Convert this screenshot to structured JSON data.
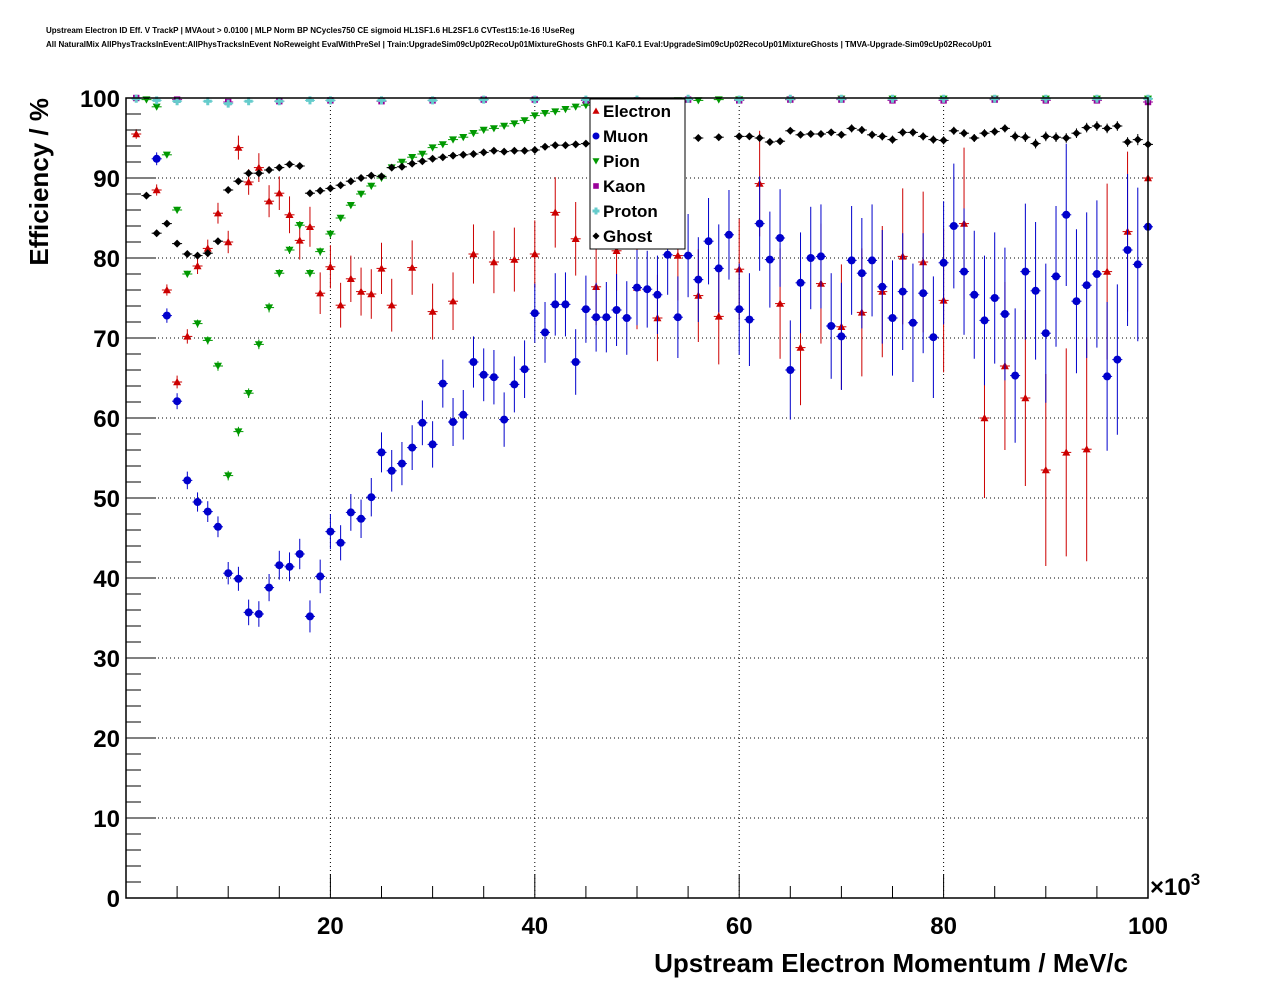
{
  "chart_data": {
    "type": "scatter",
    "title_line1": "Upstream Electron ID Eff. V TrackP | MVAout > 0.0100 | MLP Norm BP NCycles750 CE sigmoid HL1SF1.6 HL2SF1.6 CVTest15:1e-16 !UseReg",
    "title_line2": "All NaturalMix AllPhysTracksInEvent:AllPhysTracksInEvent NoReweight EvalWithPreSel | Train:UpgradeSim09cUp02RecoUp01MixtureGhosts GhF0.1 KaF0.1 Eval:UpgradeSim09cUp02RecoUp01MixtureGhosts | TMVA-Upgrade-Sim09cUp02RecoUp01",
    "xlabel": "Upstream Electron Momentum / MeV/c",
    "ylabel": "Efficiency / %",
    "x_multiplier": "×10",
    "x_multiplier_exp": "3",
    "xlim": [
      0,
      100000
    ],
    "ylim": [
      0,
      100
    ],
    "x_ticks": [
      20000,
      40000,
      60000,
      80000,
      100000
    ],
    "x_tick_labels": [
      "20",
      "40",
      "60",
      "80",
      "100"
    ],
    "y_ticks": [
      0,
      10,
      20,
      30,
      40,
      50,
      60,
      70,
      80,
      90,
      100
    ],
    "y_tick_labels": [
      "0",
      "10",
      "20",
      "30",
      "40",
      "50",
      "60",
      "70",
      "80",
      "90",
      "100"
    ],
    "grid": true,
    "legend_position": "top-center",
    "series": [
      {
        "name": "Electron",
        "color": "#cc0000",
        "marker": "triangle-up",
        "x": [
          1000,
          3000,
          4000,
          5000,
          6000,
          7000,
          8000,
          9000,
          10000,
          11000,
          12000,
          13000,
          14000,
          15000,
          16000,
          17000,
          18000,
          19000,
          20000,
          21000,
          22000,
          23000,
          24000,
          25000,
          26000,
          28000,
          30000,
          32000,
          34000,
          36000,
          38000,
          40000,
          42000,
          44000,
          46000,
          48000,
          50000,
          52000,
          54000,
          56000,
          58000,
          60000,
          62000,
          64000,
          66000,
          68000,
          70000,
          72000,
          74000,
          76000,
          78000,
          80000,
          82000,
          84000,
          86000,
          88000,
          90000,
          92000,
          94000,
          96000,
          98000,
          100000
        ],
        "y": [
          95.5,
          88.5,
          76,
          64.5,
          70.2,
          79,
          81.2,
          85.6,
          82,
          93.8,
          89.5,
          91.3,
          87.1,
          88.1,
          85.4,
          82.2,
          83.9,
          75.6,
          78.9,
          74.1,
          77.4,
          75.8,
          75.5,
          78.7,
          74.1,
          78.8,
          73.3,
          74.6,
          80.5,
          79.5,
          79.8,
          80.5,
          85.7,
          82.4,
          76.4,
          80.9,
          76.3,
          72.5,
          80.3,
          75.3,
          72.7,
          78.6,
          89.3,
          74.3,
          68.8,
          76.8,
          71.4,
          73.2,
          75.8,
          80.2,
          79.5,
          74.7,
          84.3,
          60,
          66.5,
          62.5,
          53.5,
          55.7,
          56.1,
          78.3,
          83.3,
          90
        ],
        "err": [
          0.6,
          0.7,
          0.7,
          0.8,
          0.9,
          1,
          1.1,
          1.3,
          1.4,
          1.5,
          1.6,
          1.8,
          2,
          2.1,
          2.3,
          2.4,
          2.5,
          2.6,
          2.7,
          2.8,
          2.9,
          3,
          3.1,
          3.2,
          3.3,
          3.4,
          3.5,
          3.6,
          3.7,
          3.9,
          4,
          4.2,
          4.4,
          4.6,
          4.8,
          5,
          5.2,
          5.4,
          5.6,
          5.8,
          6,
          6.3,
          6.6,
          6.9,
          7.2,
          7.5,
          7.8,
          8,
          8.2,
          8.5,
          8.8,
          9,
          9.5,
          10,
          10.5,
          11,
          12,
          13,
          14,
          11,
          10,
          9
        ]
      },
      {
        "name": "Muon",
        "color": "#0000cc",
        "marker": "circle",
        "x": [
          3000,
          4000,
          5000,
          6000,
          7000,
          8000,
          9000,
          10000,
          11000,
          12000,
          13000,
          14000,
          15000,
          16000,
          17000,
          18000,
          19000,
          20000,
          21000,
          22000,
          23000,
          24000,
          25000,
          26000,
          27000,
          28000,
          29000,
          30000,
          31000,
          32000,
          33000,
          34000,
          35000,
          36000,
          37000,
          38000,
          39000,
          40000,
          41000,
          42000,
          43000,
          44000,
          45000,
          46000,
          47000,
          48000,
          49000,
          50000,
          51000,
          52000,
          53000,
          54000,
          55000,
          56000,
          57000,
          58000,
          59000,
          60000,
          61000,
          62000,
          63000,
          64000,
          65000,
          66000,
          67000,
          68000,
          69000,
          70000,
          71000,
          72000,
          73000,
          74000,
          75000,
          76000,
          77000,
          78000,
          79000,
          80000,
          81000,
          82000,
          83000,
          84000,
          85000,
          86000,
          87000,
          88000,
          89000,
          90000,
          91000,
          92000,
          93000,
          94000,
          95000,
          96000,
          97000,
          98000,
          99000,
          100000
        ],
        "y": [
          92.4,
          72.8,
          62.1,
          52.2,
          49.5,
          48.3,
          46.4,
          40.6,
          39.9,
          35.7,
          35.5,
          38.8,
          41.6,
          41.4,
          43,
          35.2,
          40.2,
          45.8,
          44.4,
          48.2,
          47.4,
          50.1,
          55.7,
          53.4,
          54.3,
          56.3,
          59.4,
          56.7,
          64.3,
          59.5,
          60.4,
          67,
          65.4,
          65.1,
          59.8,
          64.2,
          66.1,
          73.1,
          70.7,
          74.2,
          74.2,
          67,
          73.6,
          72.6,
          72.6,
          73.5,
          72.5,
          76.3,
          76.1,
          75.4,
          80.4,
          72.6,
          80.3,
          77.3,
          82.1,
          78.7,
          82.9,
          73.6,
          72.3,
          84.3,
          79.8,
          82.5,
          66,
          76.9,
          80,
          80.2,
          71.5,
          70.2,
          79.7,
          78.1,
          79.7,
          76.4,
          72.5,
          75.8,
          71.9,
          75.6,
          70.1,
          79.4,
          84,
          78.3,
          75.4,
          72.2,
          75,
          73,
          65.3,
          78.3,
          75.9,
          70.6,
          77.7,
          85.4,
          74.6,
          76.6,
          78,
          65.2,
          67.3,
          81,
          79.2,
          83.9
        ],
        "err": [
          0.8,
          0.9,
          1,
          1.1,
          1.2,
          1.3,
          1.3,
          1.4,
          1.5,
          1.6,
          1.6,
          1.7,
          1.8,
          1.8,
          1.9,
          2,
          2.1,
          2.2,
          2.2,
          2.3,
          2.4,
          2.4,
          2.5,
          2.6,
          2.7,
          2.8,
          2.8,
          2.9,
          3,
          3,
          3.1,
          3.2,
          3.3,
          3.4,
          3.4,
          3.5,
          3.6,
          3.7,
          3.8,
          3.9,
          4,
          4.1,
          4.2,
          4.3,
          4.4,
          4.5,
          4.6,
          4.7,
          4.8,
          4.9,
          5,
          5.1,
          5.2,
          5.3,
          5.4,
          5.5,
          5.6,
          5.7,
          5.8,
          5.9,
          6,
          6.1,
          6.2,
          6.3,
          6.4,
          6.5,
          6.6,
          6.7,
          6.8,
          6.9,
          7,
          7.1,
          7.2,
          7.3,
          7.4,
          7.5,
          7.6,
          7.7,
          7.8,
          7.9,
          8,
          8.1,
          8.2,
          8.3,
          8.4,
          8.5,
          8.6,
          8.7,
          8.8,
          8.9,
          9,
          9.1,
          9.2,
          9.3,
          9.4,
          9.5,
          9.6,
          9.7
        ]
      },
      {
        "name": "Pion",
        "color": "#009900",
        "marker": "triangle-down",
        "x": [
          2000,
          3000,
          4000,
          5000,
          6000,
          7000,
          8000,
          9000,
          10000,
          11000,
          12000,
          13000,
          14000,
          15000,
          16000,
          17000,
          18000,
          19000,
          20000,
          21000,
          22000,
          23000,
          24000,
          25000,
          26000,
          27000,
          28000,
          29000,
          30000,
          31000,
          32000,
          33000,
          34000,
          35000,
          36000,
          37000,
          38000,
          39000,
          40000,
          41000,
          42000,
          43000,
          44000,
          45000,
          46000,
          47000,
          48000,
          49000,
          50000,
          52000,
          54000,
          56000,
          58000,
          60000,
          65000,
          70000,
          75000,
          80000,
          85000,
          90000,
          95000,
          100000
        ],
        "y": [
          99.8,
          98.9,
          92.9,
          86,
          78,
          71.8,
          69.7,
          66.5,
          52.8,
          58.3,
          63.1,
          69.2,
          73.8,
          78.1,
          81,
          84.1,
          78.1,
          80.8,
          83,
          85,
          86.6,
          88,
          89,
          90,
          91.3,
          92,
          92.6,
          93,
          93.8,
          94.2,
          94.8,
          95.1,
          95.6,
          96,
          96.2,
          96.5,
          96.8,
          97.2,
          97.8,
          98.1,
          98.3,
          98.6,
          98.9,
          99.1,
          99.2,
          99.3,
          99.4,
          99.5,
          99.6,
          99.6,
          99.7,
          99.7,
          99.8,
          99.8,
          99.8,
          99.9,
          99.9,
          99.9,
          99.9,
          99.9,
          99.9,
          99.9
        ],
        "err": [
          0.1,
          0.2,
          0.3,
          0.4,
          0.4,
          0.5,
          0.5,
          0.6,
          0.6,
          0.6,
          0.6,
          0.6,
          0.6,
          0.5,
          0.5,
          0.5,
          0.5,
          0.5,
          0.5,
          0.4,
          0.4,
          0.4,
          0.4,
          0.4,
          0.3,
          0.3,
          0.3,
          0.3,
          0.3,
          0.3,
          0.3,
          0.3,
          0.2,
          0.2,
          0.2,
          0.2,
          0.2,
          0.2,
          0.2,
          0.2,
          0.2,
          0.2,
          0.2,
          0.2,
          0.2,
          0.2,
          0.1,
          0.1,
          0.1,
          0.1,
          0.1,
          0.1,
          0.1,
          0.1,
          0.1,
          0.1,
          0.1,
          0.1,
          0.1,
          0.1,
          0.1,
          0.1
        ]
      },
      {
        "name": "Kaon",
        "color": "#990099",
        "marker": "square",
        "x": [
          1000,
          5000,
          10000,
          15000,
          20000,
          25000,
          30000,
          35000,
          40000,
          45000,
          50000,
          55000,
          60000,
          65000,
          70000,
          75000,
          80000,
          85000,
          90000,
          95000,
          100000
        ],
        "y": [
          100,
          99.8,
          99.5,
          99.6,
          99.7,
          99.6,
          99.7,
          99.8,
          99.8,
          99.7,
          99.7,
          99.8,
          99.7,
          99.8,
          99.8,
          99.7,
          99.7,
          99.8,
          99.7,
          99.7,
          99.5
        ],
        "err": [
          0.1,
          0.1,
          0.1,
          0.1,
          0.1,
          0.1,
          0.1,
          0.1,
          0.1,
          0.1,
          0.1,
          0.1,
          0.1,
          0.1,
          0.1,
          0.1,
          0.1,
          0.1,
          0.1,
          0.1,
          0.1
        ]
      },
      {
        "name": "Proton",
        "color": "#66cccc",
        "marker": "cross",
        "x": [
          1000,
          3000,
          5000,
          8000,
          10000,
          12000,
          15000,
          18000,
          20000,
          25000,
          30000,
          35000,
          40000,
          45000,
          50000,
          55000,
          60000,
          65000,
          70000,
          75000,
          80000,
          85000,
          90000,
          95000,
          100000
        ],
        "y": [
          99.9,
          99.7,
          99.6,
          99.6,
          99.3,
          99.6,
          99.6,
          99.7,
          99.7,
          99.7,
          99.7,
          99.8,
          99.8,
          99.8,
          99.8,
          99.9,
          99.8,
          99.9,
          99.9,
          99.9,
          99.9,
          99.9,
          99.9,
          99.9,
          99.9
        ],
        "err": [
          0.1,
          0.1,
          0.1,
          0.1,
          0.1,
          0.1,
          0.1,
          0.1,
          0.1,
          0.1,
          0.1,
          0.1,
          0.1,
          0.1,
          0.1,
          0.1,
          0.1,
          0.1,
          0.1,
          0.1,
          0.1,
          0.1,
          0.1,
          0.1,
          0.1
        ]
      },
      {
        "name": "Ghost",
        "color": "#000000",
        "marker": "diamond",
        "x": [
          2000,
          3000,
          4000,
          5000,
          6000,
          7000,
          8000,
          9000,
          10000,
          11000,
          12000,
          13000,
          14000,
          15000,
          16000,
          17000,
          18000,
          19000,
          20000,
          21000,
          22000,
          23000,
          24000,
          25000,
          26000,
          27000,
          28000,
          29000,
          30000,
          31000,
          32000,
          33000,
          34000,
          35000,
          36000,
          37000,
          38000,
          39000,
          40000,
          41000,
          42000,
          43000,
          44000,
          45000,
          46000,
          47000,
          48000,
          49000,
          50000,
          52000,
          54000,
          56000,
          58000,
          60000,
          61000,
          62000,
          63000,
          64000,
          65000,
          66000,
          67000,
          68000,
          69000,
          70000,
          71000,
          72000,
          73000,
          74000,
          75000,
          76000,
          77000,
          78000,
          79000,
          80000,
          81000,
          82000,
          83000,
          84000,
          85000,
          86000,
          87000,
          88000,
          89000,
          90000,
          91000,
          92000,
          93000,
          94000,
          95000,
          96000,
          97000,
          98000,
          99000,
          100000
        ],
        "y": [
          87.8,
          83.1,
          84.3,
          81.8,
          80.5,
          80.3,
          80.6,
          82.1,
          88.5,
          89.6,
          90.6,
          90.6,
          91,
          91.3,
          91.7,
          91.5,
          88.1,
          88.4,
          88.7,
          89.1,
          89.6,
          90,
          90.3,
          90.2,
          91.3,
          91.4,
          91.8,
          92.1,
          92.4,
          92.6,
          92.8,
          92.9,
          93,
          93.2,
          93.4,
          93.3,
          93.4,
          93.4,
          93.5,
          93.9,
          94.1,
          94.1,
          94.2,
          94.3,
          94.5,
          94.6,
          94.6,
          94.6,
          94.7,
          94.8,
          94.9,
          95,
          95.1,
          95.2,
          95.2,
          95,
          94.5,
          94.6,
          95.9,
          95.4,
          95.5,
          95.5,
          95.7,
          95.4,
          96.2,
          96,
          95.4,
          95.2,
          94.8,
          95.7,
          95.7,
          95.2,
          94.8,
          94.7,
          95.9,
          95.6,
          95,
          95.6,
          95.8,
          96.2,
          95.2,
          95.1,
          94.3,
          95.2,
          95.1,
          95,
          95.6,
          96.3,
          96.5,
          96.2,
          96.5,
          94.5,
          94.8,
          94.2
        ],
        "err": [
          0.3,
          0.3,
          0.3,
          0.3,
          0.3,
          0.3,
          0.3,
          0.3,
          0.3,
          0.3,
          0.3,
          0.3,
          0.3,
          0.3,
          0.3,
          0.3,
          0.3,
          0.3,
          0.3,
          0.3,
          0.3,
          0.3,
          0.3,
          0.3,
          0.3,
          0.3,
          0.3,
          0.3,
          0.3,
          0.3,
          0.3,
          0.3,
          0.3,
          0.3,
          0.3,
          0.3,
          0.3,
          0.3,
          0.3,
          0.3,
          0.3,
          0.3,
          0.3,
          0.3,
          0.3,
          0.3,
          0.3,
          0.3,
          0.4,
          0.4,
          0.4,
          0.4,
          0.4,
          0.4,
          0.4,
          0.4,
          0.4,
          0.4,
          0.4,
          0.4,
          0.4,
          0.4,
          0.4,
          0.4,
          0.5,
          0.5,
          0.5,
          0.5,
          0.5,
          0.5,
          0.5,
          0.5,
          0.5,
          0.5,
          0.5,
          0.5,
          0.5,
          0.5,
          0.5,
          0.5,
          0.6,
          0.6,
          0.6,
          0.6,
          0.6,
          0.6,
          0.6,
          0.6,
          0.6,
          0.6,
          0.6,
          0.6,
          0.7,
          0.7
        ]
      }
    ]
  }
}
